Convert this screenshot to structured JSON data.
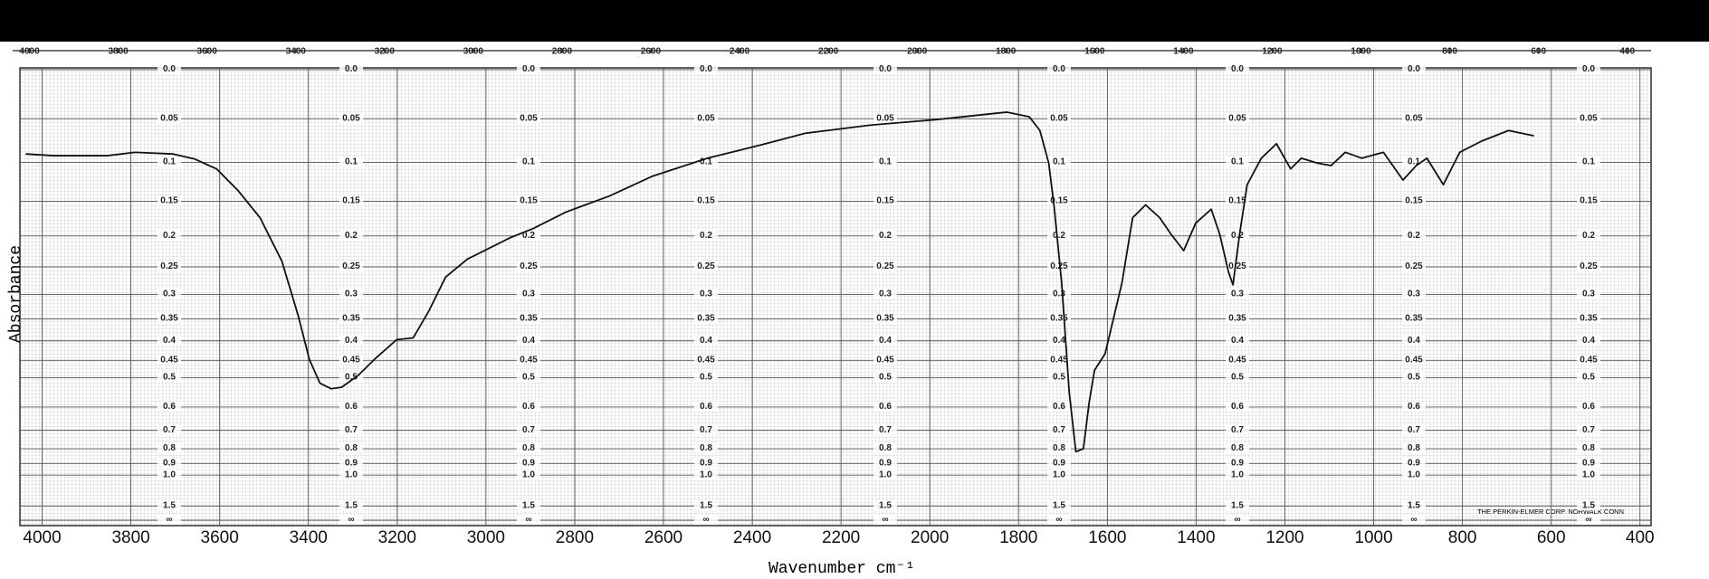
{
  "chart_data": {
    "type": "line",
    "x_label": "Wavenumber cm⁻¹",
    "y_label": "Absorbance",
    "annotations": [
      "THE PERKIN-ELMER CORP. NORWALK CONN"
    ],
    "xlim": [
      4050,
      375
    ],
    "xticks": [
      4000,
      3800,
      3600,
      3400,
      3200,
      3000,
      2800,
      2600,
      2400,
      2200,
      2000,
      1800,
      1600,
      1400,
      1200,
      1000,
      800,
      600,
      400
    ],
    "x2ticks": [
      4000,
      3800,
      3600,
      3400,
      3200,
      3000,
      2800,
      2600,
      2400,
      2200,
      2000,
      1800,
      1600,
      1400,
      1200,
      1000,
      800,
      600,
      400
    ],
    "y_scale": "transmittance",
    "ylim": [
      0,
      "Infinity"
    ],
    "yticks": [
      {
        "value": 0,
        "label": "0.0"
      },
      0.05,
      0.1,
      0.15,
      0.2,
      0.25,
      0.3,
      0.35,
      0.4,
      0.45,
      0.5,
      0.6,
      0.7,
      0.8,
      0.9,
      {
        "value": 1,
        "label": "1.0"
      },
      1.5,
      {
        "value": "Infinity",
        "label": "∞"
      }
    ],
    "grid": true,
    "series": [
      {
        "color": "#111111",
        "x": [
          4037,
          3975,
          3853,
          3791,
          3705,
          3656,
          3607,
          3558,
          3509,
          3460,
          3423,
          3398,
          3374,
          3349,
          3325,
          3288,
          3251,
          3201,
          3164,
          3128,
          3091,
          3042,
          2992,
          2943,
          2894,
          2820,
          2722,
          2624,
          2501,
          2378,
          2280,
          2133,
          1985,
          1887,
          1826,
          1776,
          1752,
          1732,
          1720,
          1703,
          1686,
          1671,
          1654,
          1641,
          1629,
          1605,
          1567,
          1543,
          1514,
          1482,
          1457,
          1428,
          1401,
          1366,
          1347,
          1327,
          1317,
          1302,
          1285,
          1253,
          1219,
          1187,
          1163,
          1126,
          1096,
          1064,
          1027,
          978,
          934,
          904,
          880,
          843,
          806,
          757,
          696,
          639
        ],
        "values": [
          0.09,
          0.092,
          0.092,
          0.088,
          0.09,
          0.096,
          0.108,
          0.136,
          0.173,
          0.24,
          0.343,
          0.447,
          0.517,
          0.535,
          0.53,
          0.493,
          0.447,
          0.397,
          0.393,
          0.332,
          0.268,
          0.237,
          0.219,
          0.202,
          0.189,
          0.165,
          0.143,
          0.117,
          0.095,
          0.079,
          0.066,
          0.057,
          0.051,
          0.046,
          0.043,
          0.048,
          0.063,
          0.101,
          0.157,
          0.278,
          0.545,
          0.818,
          0.8,
          0.583,
          0.478,
          0.432,
          0.278,
          0.173,
          0.155,
          0.173,
          0.197,
          0.223,
          0.181,
          0.161,
          0.197,
          0.259,
          0.282,
          0.197,
          0.128,
          0.095,
          0.078,
          0.108,
          0.095,
          0.101,
          0.104,
          0.088,
          0.095,
          0.088,
          0.122,
          0.104,
          0.095,
          0.128,
          0.088,
          0.075,
          0.063,
          0.069
        ]
      }
    ]
  }
}
